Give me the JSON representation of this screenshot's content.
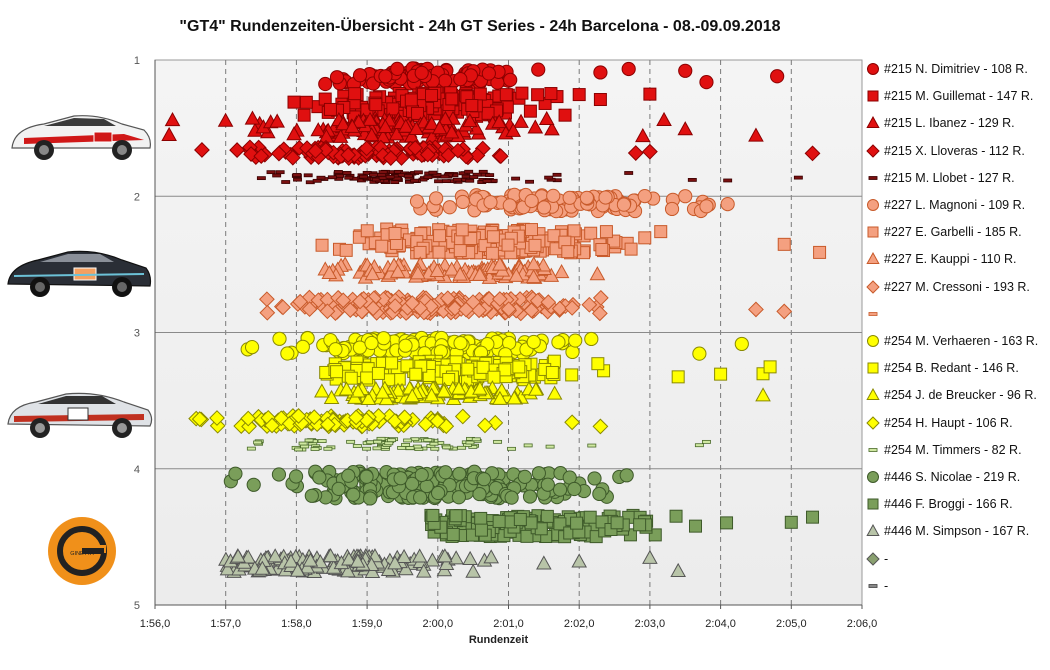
{
  "title": "\"GT4\" Rundenzeiten-Übersicht  - 24h GT Series  - 24h Barcelona  - 08.-09.09.2018",
  "chart_data": {
    "type": "scatter",
    "title": "\"GT4\" Rundenzeiten-Übersicht  - 24h GT Series  - 24h Barcelona  - 08.-09.09.2018",
    "xlabel": "Rundenzeit",
    "ylabel": "",
    "x_unit": "seconds (lap time)",
    "xlim": [
      116,
      126
    ],
    "x_ticks": [
      "1:56,0",
      "1:57,0",
      "1:58,0",
      "1:59,0",
      "2:00,0",
      "2:01,0",
      "2:02,0",
      "2:03,0",
      "2:04,0",
      "2:05,0",
      "2:06,0"
    ],
    "ylim": [
      1,
      5
    ],
    "y_ticks": [
      "1",
      "2",
      "3",
      "4",
      "5"
    ],
    "grid": "vertical dashed, horizontal solid",
    "legend_position": "right",
    "series": [
      {
        "name": "#215 N. Dimitriev - 108 R.",
        "marker": "circle",
        "color": "#e01010",
        "edge": "#8b0000",
        "y": 1.12,
        "spread": 0.06,
        "n": 108,
        "center": 119.9,
        "sd": 0.75,
        "min": 117.2,
        "max": 124.8,
        "outliers": [
          122.3,
          122.7,
          123.5,
          123.8,
          124.8
        ]
      },
      {
        "name": "#215 M. Guillemat - 147 R.",
        "marker": "square",
        "color": "#e01010",
        "edge": "#8b0000",
        "y": 1.33,
        "spread": 0.09,
        "n": 147,
        "center": 119.8,
        "sd": 0.8,
        "min": 117.5,
        "max": 123.0,
        "outliers": [
          121.6,
          121.8,
          122.0,
          122.3,
          123.0
        ]
      },
      {
        "name": "#215 L. Ibanez - 129 R.",
        "marker": "triangle",
        "color": "#e01010",
        "edge": "#8b0000",
        "y": 1.5,
        "spread": 0.07,
        "n": 129,
        "center": 119.3,
        "sd": 0.9,
        "min": 116.2,
        "max": 124.5,
        "outliers": [
          116.2,
          122.9,
          123.2,
          123.5,
          124.5
        ]
      },
      {
        "name": "#215 X. Lloveras - 112 R.",
        "marker": "diamond",
        "color": "#e01010",
        "edge": "#8b0000",
        "y": 1.68,
        "spread": 0.04,
        "n": 112,
        "center": 118.9,
        "sd": 0.85,
        "min": 116.6,
        "max": 125.3,
        "outliers": [
          122.8,
          123.0,
          125.3
        ]
      },
      {
        "name": "#215 M. Llobet - 127 R.",
        "marker": "dash",
        "color": "#7a1010",
        "edge": "#3a0000",
        "y": 1.86,
        "spread": 0.04,
        "n": 127,
        "center": 119.4,
        "sd": 0.9,
        "min": 117.5,
        "max": 125.1,
        "outliers": [
          122.7,
          123.6,
          124.1,
          125.1
        ]
      },
      {
        "name": "#227 L. Magnoni - 109 R.",
        "marker": "circle",
        "color": "#f4a080",
        "edge": "#c85a2a",
        "y": 2.05,
        "spread": 0.06,
        "n": 109,
        "center": 121.6,
        "sd": 0.9,
        "min": 119.6,
        "max": 124.1,
        "outliers": [
          123.5,
          123.8,
          124.1
        ]
      },
      {
        "name": "#227 E. Garbelli - 185 R.",
        "marker": "square",
        "color": "#f4a080",
        "edge": "#c85a2a",
        "y": 2.33,
        "spread": 0.09,
        "n": 185,
        "center": 120.6,
        "sd": 1.0,
        "min": 118.2,
        "max": 125.4,
        "outliers": [
          124.9,
          125.4
        ]
      },
      {
        "name": "#227 E. Kauppi - 110 R.",
        "marker": "triangle",
        "color": "#f4a080",
        "edge": "#c85a2a",
        "y": 2.55,
        "spread": 0.05,
        "n": 110,
        "center": 120.3,
        "sd": 0.9,
        "min": 118.3,
        "max": 124.0,
        "outliers": []
      },
      {
        "name": "#227 M. Cressoni - 193 R.",
        "marker": "diamond",
        "color": "#f4a080",
        "edge": "#c85a2a",
        "y": 2.8,
        "spread": 0.06,
        "n": 193,
        "center": 119.8,
        "sd": 1.1,
        "min": 117.3,
        "max": 124.9,
        "outliers": [
          124.5,
          124.9
        ]
      },
      {
        "name": "",
        "marker": "dash",
        "color": "#f4a080",
        "edge": "#c85a2a",
        "y": null,
        "n": 0
      },
      {
        "name": "#254 M. Verhaeren - 163 R.",
        "marker": "circle",
        "color": "#ffff00",
        "edge": "#8a8a00",
        "y": 3.1,
        "spread": 0.06,
        "n": 163,
        "center": 119.7,
        "sd": 1.0,
        "min": 117.1,
        "max": 124.3,
        "outliers": [
          123.7,
          124.3
        ]
      },
      {
        "name": "#254 B. Redant - 146 R.",
        "marker": "square",
        "color": "#ffff00",
        "edge": "#8a8a00",
        "y": 3.28,
        "spread": 0.07,
        "n": 146,
        "center": 120.1,
        "sd": 0.9,
        "min": 118.4,
        "max": 124.7,
        "outliers": [
          123.4,
          124.0,
          124.6,
          124.7
        ]
      },
      {
        "name": "#254 J. de Breucker - 96 R.",
        "marker": "triangle",
        "color": "#ffff00",
        "edge": "#8a8a00",
        "y": 3.45,
        "spread": 0.04,
        "n": 96,
        "center": 119.8,
        "sd": 0.8,
        "min": 118.1,
        "max": 124.6,
        "outliers": [
          124.6
        ]
      },
      {
        "name": "#254 H. Haupt - 106 R.",
        "marker": "diamond",
        "color": "#ffff00",
        "edge": "#8a8a00",
        "y": 3.65,
        "spread": 0.04,
        "n": 106,
        "center": 118.5,
        "sd": 0.9,
        "min": 116.5,
        "max": 122.3,
        "outliers": [
          121.9,
          122.3
        ]
      },
      {
        "name": "#254 M. Timmers - 82 R.",
        "marker": "dash",
        "color": "#cfe8a0",
        "edge": "#4a6a2a",
        "y": 3.82,
        "spread": 0.04,
        "n": 82,
        "center": 119.6,
        "sd": 1.0,
        "min": 117.3,
        "max": 123.8,
        "outliers": [
          123.7,
          123.8
        ]
      },
      {
        "name": "#446 S. Nicolae - 219 R.",
        "marker": "circle",
        "color": "#7a9e5a",
        "edge": "#3e5a2a",
        "y": 4.12,
        "spread": 0.1,
        "n": 219,
        "center": 119.9,
        "sd": 1.1,
        "min": 117.0,
        "max": 124.3,
        "outliers": []
      },
      {
        "name": "#446 F. Broggi - 166 R.",
        "marker": "square",
        "color": "#7a9e5a",
        "edge": "#3e5a2a",
        "y": 4.42,
        "spread": 0.08,
        "n": 166,
        "center": 121.3,
        "sd": 1.1,
        "min": 119.9,
        "max": 125.3,
        "outliers": [
          125.0,
          125.3
        ]
      },
      {
        "name": "#446 M. Simpson - 167 R.",
        "marker": "triangle",
        "color": "#b8c4a8",
        "edge": "#555555",
        "y": 4.7,
        "spread": 0.06,
        "n": 167,
        "center": 118.5,
        "sd": 0.9,
        "min": 117.0,
        "max": 123.4,
        "outliers": [
          120.1,
          120.5,
          121.5,
          122.0,
          123.0,
          123.4
        ]
      },
      {
        "name": "-",
        "marker": "diamond",
        "color": "#8aa070",
        "edge": "#555555",
        "y": null,
        "n": 0
      },
      {
        "name": "-",
        "marker": "dash",
        "color": "#888888",
        "edge": "#444444",
        "y": null,
        "n": 0
      }
    ]
  },
  "logo_text": "GINETTA"
}
